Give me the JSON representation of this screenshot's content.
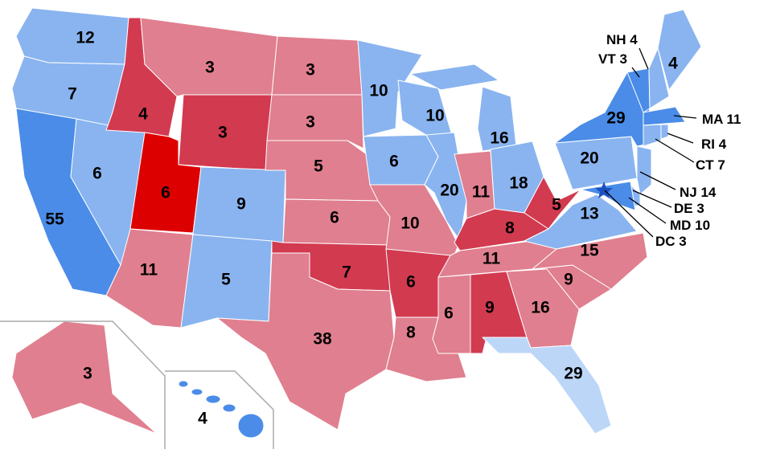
{
  "colors": {
    "likely_dem": "#89b4f0",
    "safe_dem": "#4a8ce8",
    "lean_dem": "#bcd6f8",
    "likely_rep": "#e07f8f",
    "safe_rep": "#d23a50",
    "utah": "#dd0000"
  },
  "states": {
    "WA": "12",
    "OR": "7",
    "CA": "55",
    "NV": "6",
    "ID": "4",
    "MT": "3",
    "WY": "3",
    "UT": "6",
    "CO": "9",
    "AZ": "11",
    "NM": "5",
    "ND": "3",
    "SD": "3",
    "NE": "5",
    "KS": "6",
    "OK": "7",
    "TX": "38",
    "MN": "10",
    "IA": "6",
    "MO": "10",
    "AR": "6",
    "LA": "8",
    "WI": "10",
    "IL": "20",
    "MI": "16",
    "IN": "11",
    "OH": "18",
    "KY": "8",
    "TN": "11",
    "MS": "6",
    "AL": "9",
    "GA": "16",
    "FL": "29",
    "SC": "9",
    "NC": "15",
    "VA": "13",
    "WV": "5",
    "PA": "20",
    "NY": "29",
    "ME": "4",
    "AK": "3",
    "HI": "4"
  },
  "callouts": {
    "NH": "NH 4",
    "VT": "VT 3",
    "MA": "MA 11",
    "RI": "RI 4",
    "CT": "CT 7",
    "NJ": "NJ 14",
    "DE": "DE 3",
    "MD": "MD 10",
    "DC": "DC 3"
  }
}
